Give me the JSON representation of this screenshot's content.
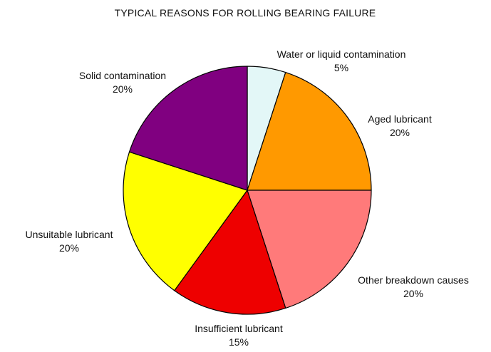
{
  "chart_data": {
    "type": "pie",
    "title": "TYPICAL REASONS FOR ROLLING BEARING FAILURE",
    "slices": [
      {
        "label": "Water or liquid contamination",
        "value": 5,
        "value_label": "5%",
        "color": "#e3f7f7"
      },
      {
        "label": "Aged lubricant",
        "value": 20,
        "value_label": "20%",
        "color": "#ff9900"
      },
      {
        "label": "Other breakdown causes",
        "value": 20,
        "value_label": "20%",
        "color": "#ff7a7a"
      },
      {
        "label": "Insufficient lubricant",
        "value": 15,
        "value_label": "15%",
        "color": "#ee0000"
      },
      {
        "label": "Unsuitable lubricant",
        "value": 20,
        "value_label": "20%",
        "color": "#ffff00"
      },
      {
        "label": "Solid contamination",
        "value": 20,
        "value_label": "20%",
        "color": "#800080"
      }
    ],
    "start": "12 o'clock",
    "direction": "clockwise",
    "edge_color": "#000000"
  }
}
